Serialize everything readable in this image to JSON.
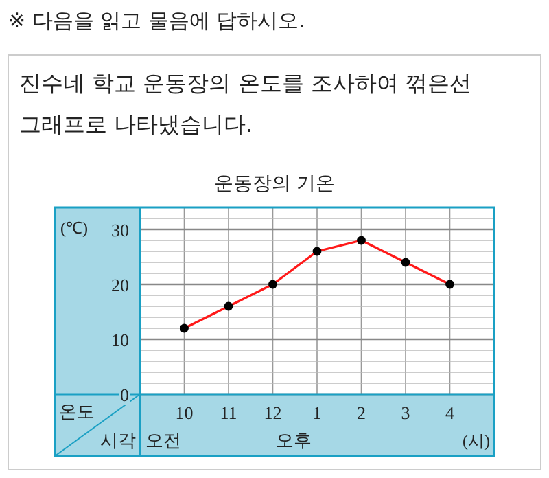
{
  "chart_data": {
    "type": "line",
    "title": "운동장의 기온",
    "ylabel": "(℃)",
    "xlabel": "(시)",
    "categories": [
      "10",
      "11",
      "12",
      "1",
      "2",
      "3",
      "4"
    ],
    "series": [
      {
        "color": "#ff1a1a",
        "values": [
          12,
          16,
          20,
          26,
          28,
          24,
          20
        ]
      }
    ],
    "ylim": [
      0,
      34
    ],
    "yticks": [
      0,
      {
        "value": 2,
        "label": null
      },
      {
        "value": 4,
        "label": null
      },
      {
        "value": 6,
        "label": null
      },
      {
        "value": 8,
        "label": null
      },
      10,
      {
        "value": 12,
        "label": null
      },
      {
        "value": 14,
        "label": null
      },
      {
        "value": 16,
        "label": null
      },
      {
        "value": 18,
        "label": null
      },
      20,
      {
        "value": 22,
        "label": null
      },
      {
        "value": 24,
        "label": null
      },
      {
        "value": 26,
        "label": null
      },
      {
        "value": 28,
        "label": null
      },
      30,
      {
        "value": 32,
        "label": null
      },
      {
        "value": 34,
        "label": null
      }
    ],
    "grid": true,
    "marker": "circle",
    "line_style": "solid",
    "annotations": [
      "※ 다음을 읽고 물음에 답하시오.",
      "진수네 학교 운동장의 온도를 조사하여 꺾은선 그래프로 나타냈습니다.",
      "온도",
      "시각",
      "오전",
      "오후"
    ]
  }
}
